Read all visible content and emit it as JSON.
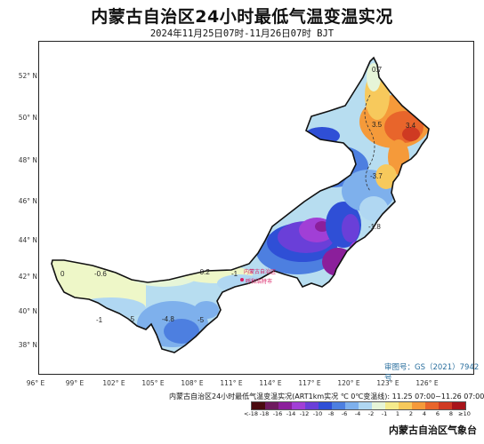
{
  "title": "内蒙古自治区24小时最低气温变温实况",
  "subtitle": "2024年11月25日07时-11月26日07时 BJT",
  "map": {
    "lat_labels": [
      "52° N",
      "50° N",
      "48° N",
      "46° N",
      "44° N",
      "42° N",
      "40° N",
      "38° N"
    ],
    "lon_labels": [
      "96° E",
      "99° E",
      "102° E",
      "105° E",
      "108° E",
      "111° E",
      "114° E",
      "117° E",
      "120° E",
      "123° E",
      "126° E"
    ],
    "approval": "审图号：GS（2021）7942号",
    "city_label_1": "内蒙古自治区",
    "city_label_2": "呼和浩特市",
    "values": [
      "0",
      "-0.6",
      "-0.2",
      "-1",
      "-1",
      "-5",
      "-4.8",
      "-5",
      "-1.8",
      "-3.7",
      "3.5",
      "3.4",
      "0.7"
    ]
  },
  "legend": {
    "title": "内蒙古自治区24小时最低气温变温实况(ART1km实况  ℃  0℃变温线): 11.25 07:00~11.26 07:00",
    "colors": [
      "#4a0a0f",
      "#6e1a5e",
      "#8b1f9b",
      "#a13fd6",
      "#6a3fd8",
      "#2f4fd6",
      "#4d7fe0",
      "#7eb0ec",
      "#b0d7f2",
      "#e6f5d8",
      "#f5eb8c",
      "#f7c95c",
      "#f59a3a",
      "#e8652b",
      "#cf3a22",
      "#a8141a"
    ],
    "ticks": [
      "<-18",
      "-18",
      "-16",
      "-14",
      "-12",
      "-10",
      "-8",
      "-6",
      "-4",
      "-2",
      "-1",
      "1",
      "2",
      "4",
      "6",
      "8",
      "≥10"
    ]
  },
  "agency": "内蒙古自治区气象台"
}
